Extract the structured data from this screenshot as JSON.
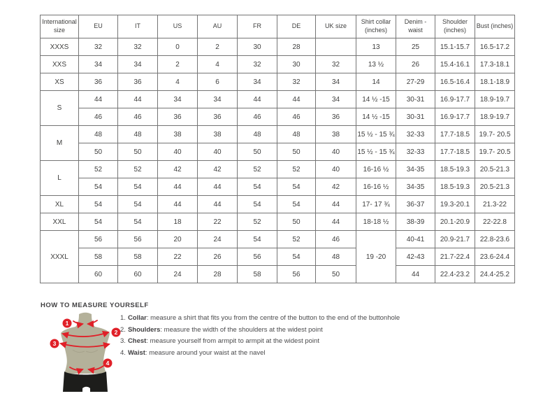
{
  "size_chart": {
    "columns": [
      "International size",
      "EU",
      "IT",
      "US",
      "AU",
      "FR",
      "DE",
      "UK size",
      "Shirt collar (inches)",
      "Denim - waist",
      "Shoulder (inches)",
      "Bust (inches)"
    ],
    "rows": [
      {
        "cells": [
          "XXXS",
          "32",
          "32",
          "0",
          "2",
          "30",
          "28",
          "",
          "13",
          "25",
          "15.1-15.7",
          "16.5-17.2"
        ]
      },
      {
        "cells": [
          "XXS",
          "34",
          "34",
          "2",
          "4",
          "32",
          "30",
          "32",
          "13 ½",
          "26",
          "15.4-16.1",
          "17.3-18.1"
        ]
      },
      {
        "cells": [
          "XS",
          "36",
          "36",
          "4",
          "6",
          "34",
          "32",
          "34",
          "14",
          "27-29",
          "16.5-16.4",
          "18.1-18.9"
        ]
      },
      {
        "cells": [
          {
            "t": "S",
            "rs": 2
          },
          "44",
          "44",
          "34",
          "34",
          "44",
          "44",
          "34",
          "14 ½ -15",
          "30-31",
          "16.9-17.7",
          "18.9-19.7"
        ]
      },
      {
        "cells": [
          "46",
          "46",
          "36",
          "36",
          "46",
          "46",
          "36",
          "14 ½ -15",
          "30-31",
          "16.9-17.7",
          "18.9-19.7"
        ]
      },
      {
        "cells": [
          {
            "t": "M",
            "rs": 2
          },
          "48",
          "48",
          "38",
          "38",
          "48",
          "48",
          "38",
          "15 ½ - 15 ¾",
          "32-33",
          "17.7-18.5",
          "19.7- 20.5"
        ]
      },
      {
        "cells": [
          "50",
          "50",
          "40",
          "40",
          "50",
          "50",
          "40",
          "15 ½ - 15 ¾",
          "32-33",
          "17.7-18.5",
          "19.7- 20.5"
        ]
      },
      {
        "cells": [
          {
            "t": "L",
            "rs": 2
          },
          "52",
          "52",
          "42",
          "42",
          "52",
          "52",
          "40",
          "16-16 ½",
          "34-35",
          "18.5-19.3",
          "20.5-21.3"
        ]
      },
      {
        "cells": [
          "54",
          "54",
          "44",
          "44",
          "54",
          "54",
          "42",
          "16-16 ½",
          "34-35",
          "18.5-19.3",
          "20.5-21.3"
        ]
      },
      {
        "cells": [
          "XL",
          "54",
          "54",
          "44",
          "44",
          "54",
          "54",
          "44",
          "17- 17 ¾",
          "36-37",
          "19.3-20.1",
          "21.3-22"
        ]
      },
      {
        "cells": [
          "XXL",
          "54",
          "54",
          "18",
          "22",
          "52",
          "50",
          "44",
          "18-18 ½",
          "38-39",
          "20.1-20.9",
          "22-22.8"
        ]
      },
      {
        "cells": [
          {
            "t": "XXXL",
            "rs": 3
          },
          "56",
          "56",
          "20",
          "24",
          "54",
          "52",
          "46",
          {
            "t": "19 -20",
            "rs": 3
          },
          "40-41",
          "20.9-21.7",
          "22.8-23.6"
        ]
      },
      {
        "cells": [
          "58",
          "58",
          "22",
          "26",
          "56",
          "54",
          "48",
          "42-43",
          "21.7-22.4",
          "23.6-24.4"
        ]
      },
      {
        "cells": [
          "60",
          "60",
          "24",
          "28",
          "58",
          "56",
          "50",
          "44",
          "22.4-23.2",
          "24.4-25.2"
        ]
      }
    ]
  },
  "measure": {
    "heading": "HOW TO MEASURE YOURSELF",
    "instructions": [
      {
        "num": "1.",
        "label": "Collar",
        "text": ": measure a shirt that fits you from the centre of the button to the end of the buttonhole"
      },
      {
        "num": "2.",
        "label": "Shoulders",
        "text": ": measure the width of the shoulders at the widest point"
      },
      {
        "num": "3.",
        "label": "Chest",
        "text": ": measure yourself from armpit to armpit at the widest point"
      },
      {
        "num": "4.",
        "label": "Waist",
        "text": ": measure around your waist at the navel"
      }
    ],
    "figure_markers": [
      "1",
      "2",
      "3",
      "4"
    ]
  },
  "colors": {
    "accent_red": "#e02028",
    "torso": "#b4b19a",
    "torso_shade": "#a3a089",
    "shorts": "#1d1d1b",
    "table_border": "#757575",
    "text": "#3f3f3e"
  }
}
